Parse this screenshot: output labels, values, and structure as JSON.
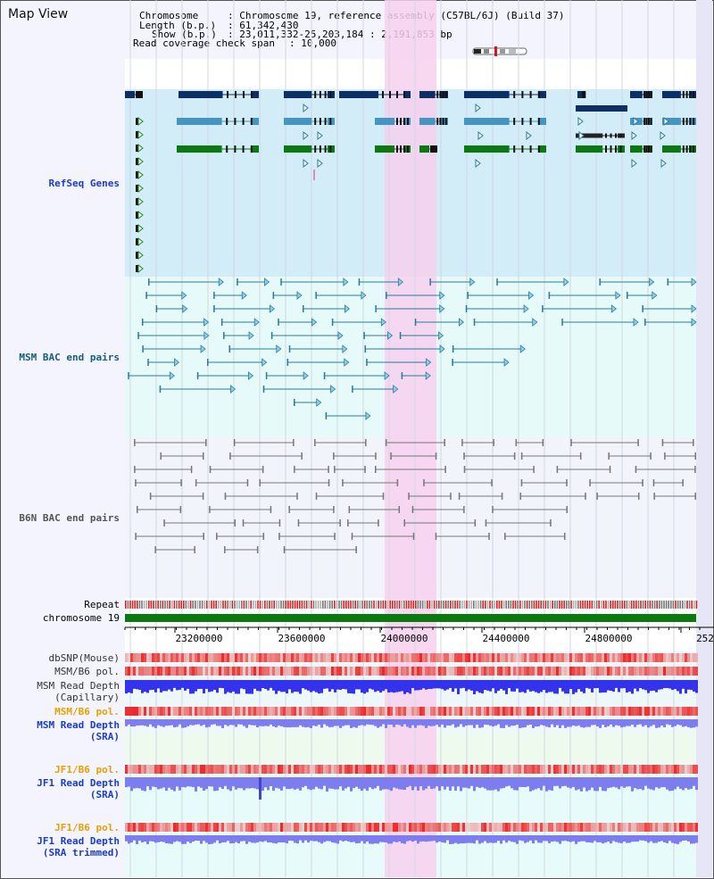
{
  "title": "Map View",
  "info": {
    "chromosome_key": "Chromosome",
    "chromosome_val": ": Chromosome 19, reference assembly (C57BL/6J) (Build 37)",
    "length_key": "Length (b.p.)",
    "length_val": ": 61,342,430",
    "show_key": "Show (b.p.)",
    "show_val": ": 23,011,332-25,203,184 : 2,191,853 bp",
    "coverage_key": "Read coverage check span",
    "coverage_val": ": 10,000"
  },
  "tracks": {
    "refseq": "RefSeq Genes",
    "msm_bac": "MSM BAC end pairs",
    "b6n_bac": "B6N BAC end pairs",
    "repeat": "Repeat",
    "chromosome": "chromosome 19",
    "dbsnp": "dbSNP(Mouse)",
    "msm_b6_pol_1": "MSM/B6 pol.",
    "msm_depth_cap_1": "MSM Read Depth",
    "msm_depth_cap_2": "(Capillary)",
    "msm_b6_pol_2": "MSM/B6 pol.",
    "msm_depth_sra_1": "MSM Read Depth",
    "msm_depth_sra_2": "(SRA)",
    "jf1_b6_pol_1": "JF1/B6 pol.",
    "jf1_depth_sra_1": "JF1 Read Depth",
    "jf1_depth_sra_2": "(SRA)",
    "jf1_b6_pol_2": "JF1/B6 pol.",
    "jf1_depth_trim_1": "JF1 Read Depth",
    "jf1_depth_trim_2": "(SRA trimmed)"
  },
  "axis": {
    "ticks": [
      "23200000",
      "23600000",
      "24000000",
      "24400000",
      "24800000",
      "252"
    ]
  },
  "colors": {
    "refseq_bg": "#d2ecf8",
    "msm_bg": "#e6fafa",
    "b6n_bg": "#f2f4fb",
    "highlight": "#f7d0ef",
    "gene_dark": "#0d2f64",
    "gene_mid": "#4595c0",
    "gene_green": "#0a7a10",
    "msm_pair": "#2b7a9a",
    "b6n_pair": "#777777",
    "chromosome_bar": "#0a7a10",
    "depth_blue": "#3333ee",
    "depth_light": "#7d7df0",
    "label_blue": "#1a3cc9",
    "label_orange": "#e8a000",
    "label_teal": "#155e7a"
  }
}
